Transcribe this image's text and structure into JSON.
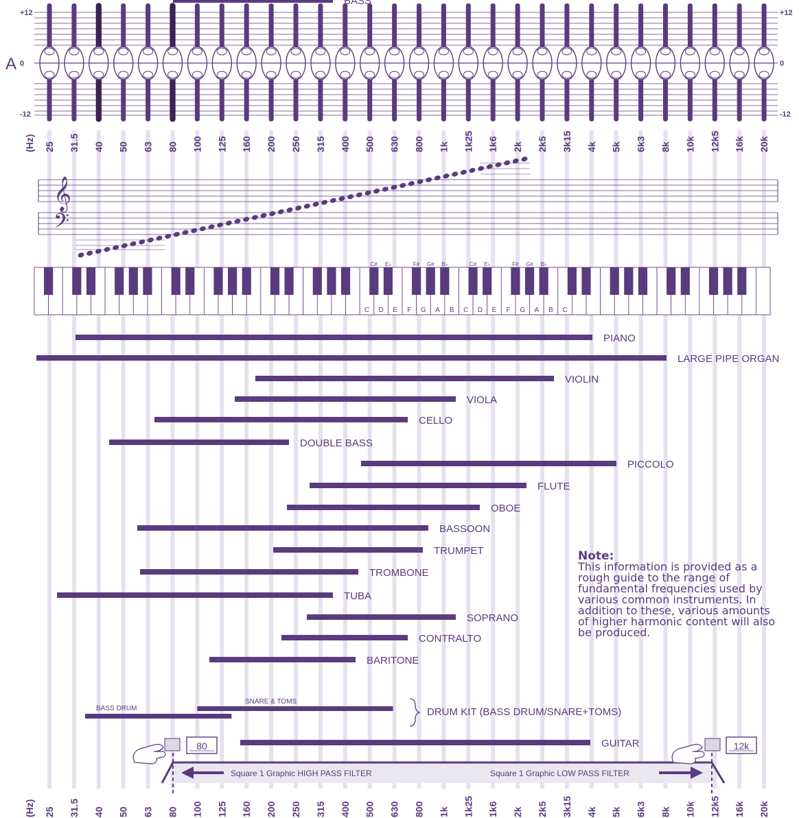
{
  "eq": {
    "bands": [
      "25",
      "31.5",
      "40",
      "50",
      "63",
      "80",
      "100",
      "125",
      "160",
      "200",
      "250",
      "315",
      "400",
      "500",
      "630",
      "800",
      "1k",
      "1k25",
      "1k6",
      "2k",
      "2k5",
      "3k15",
      "4k",
      "5k",
      "6k3",
      "8k",
      "10k",
      "12k5",
      "16k",
      "20k"
    ],
    "hz_label": "(Hz)",
    "db_plus": "+12",
    "db_zero": "0",
    "db_minus": "-12",
    "channel": "A"
  },
  "piano": {
    "white_labels": [
      "C",
      "D",
      "E",
      "F",
      "G",
      "A",
      "B",
      "C",
      "D",
      "E",
      "F",
      "G",
      "A",
      "B",
      "C"
    ],
    "black_labels": [
      "C#",
      "E♭",
      "F#",
      "G#",
      "B♭",
      "C#",
      "E♭",
      "F#",
      "G#",
      "B♭"
    ]
  },
  "instruments": [
    {
      "name": "PIANO",
      "low": "31.5",
      "high": "4k"
    },
    {
      "name": "LARGE PIPE ORGAN",
      "low": "20",
      "high": "8k"
    },
    {
      "name": "VIOLIN",
      "low": "200",
      "high": "3k15"
    },
    {
      "name": "VIOLA",
      "low": "125",
      "high": "1k"
    },
    {
      "name": "CELLO",
      "low": "63",
      "high": "630"
    },
    {
      "name": "DOUBLE BASS",
      "low": "40",
      "high": "250"
    },
    {
      "name": "PICCOLO",
      "low": "500",
      "high": "5k"
    },
    {
      "name": "FLUTE",
      "low": "250",
      "high": "2k5"
    },
    {
      "name": "OBOE",
      "low": "250",
      "high": "1k6"
    },
    {
      "name": "BASSOON",
      "low": "63",
      "high": "800"
    },
    {
      "name": "TRUMPET",
      "low": "200",
      "high": "800"
    },
    {
      "name": "TROMBONE",
      "low": "63",
      "high": "500"
    },
    {
      "name": "TUBA",
      "low": "25",
      "high": "400"
    },
    {
      "name": "SOPRANO",
      "low": "250",
      "high": "1k"
    },
    {
      "name": "CONTRALTO",
      "low": "250",
      "high": "630"
    },
    {
      "name": "BARITONE",
      "low": "100",
      "high": "400"
    },
    {
      "name": "BASS",
      "low": "80",
      "high": "400"
    },
    {
      "name": "DRUM KIT (BASS DRUM/SNARE+TOMS)",
      "low": "31.5",
      "high": "630"
    },
    {
      "name": "GUITAR",
      "low": "160",
      "high": "4k"
    }
  ],
  "drum": {
    "bass_drum": "BASS DRUM",
    "snare": "SNARE & TOMS"
  },
  "note": {
    "title": "Note:",
    "body": "This information is provided as a rough guide to the range of fundamental frequencies used by various common instruments.  In addition to these, various amounts of higher harmonic content will also be produced."
  },
  "filters": {
    "hpf_value": "80",
    "lpf_value": "12k",
    "hpf_label": "Square 1 Graphic HIGH PASS FILTER",
    "lpf_label": "Square 1 Graphic LOW PASS FILTER"
  },
  "colors": {
    "accent": "#5a3b7e",
    "grid": "#e6e1ee",
    "filter_band": "#ebe7f1"
  }
}
